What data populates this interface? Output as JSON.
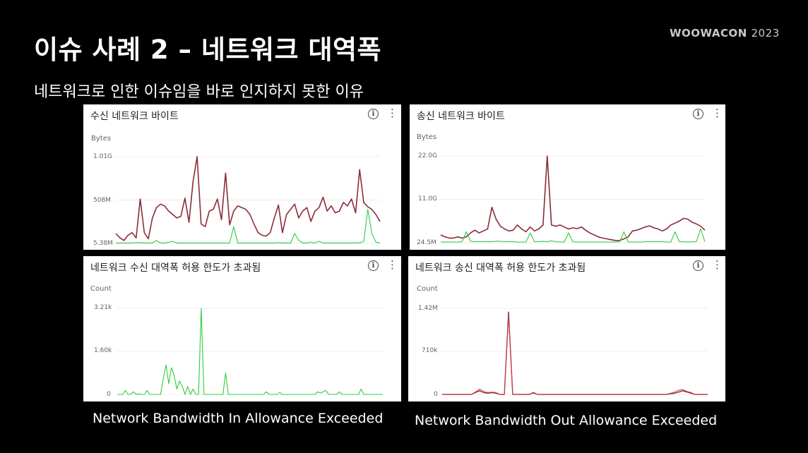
{
  "slide": {
    "title": "이슈 사례 2 – 네트워크 대역폭",
    "brand": "WOOWACON",
    "brand_year": "2023",
    "subtitle": "네트워크로 인한 이슈임을 바로 인지하지 못한 이유"
  },
  "captions": {
    "in": "Network Bandwidth In Allowance Exceeded",
    "out": "Network Bandwidth Out Allowance Exceeded"
  },
  "colors": {
    "series_dark": "#8b2c3a",
    "series_green": "#2ecc40",
    "series_red": "#d04040"
  },
  "panels": [
    {
      "id": "recv",
      "title": "수신 네트워크 바이트",
      "ylabel": "Bytes",
      "ticks": [
        "1.01G",
        "508M",
        "5.38M"
      ]
    },
    {
      "id": "send",
      "title": "송신 네트워크 바이트",
      "ylabel": "Bytes",
      "ticks": [
        "22.0G",
        "11.0G",
        "24.5M"
      ]
    },
    {
      "id": "inexc",
      "title": "네트워크 수신 대역폭 허용 한도가 초과됨",
      "ylabel": "Count",
      "ticks": [
        "3.21k",
        "1.60k",
        "0"
      ]
    },
    {
      "id": "outexc",
      "title": "네트워크 송신 대역폭 허용 한도가 초과됨",
      "ylabel": "Count",
      "ticks": [
        "1.42M",
        "710k",
        "0"
      ]
    }
  ],
  "chart_data": [
    {
      "type": "line",
      "title": "수신 네트워크 바이트",
      "ylabel": "Bytes",
      "ylim": [
        5.38,
        1010
      ],
      "unit": "M",
      "yticks": [
        "1.01G",
        "508M",
        "5.38M"
      ],
      "series": [
        {
          "values": [
            120,
            70,
            40,
            100,
            130,
            70,
            520,
            130,
            60,
            300,
            420,
            460,
            440,
            380,
            340,
            300,
            320,
            530,
            250,
            720,
            1010,
            230,
            200,
            380,
            400,
            520,
            280,
            820,
            220,
            380,
            440,
            420,
            400,
            340,
            230,
            130,
            100,
            90,
            130,
            300,
            450,
            130,
            340,
            400,
            460,
            300,
            380,
            420,
            260,
            380,
            420,
            540,
            380,
            440,
            360,
            380,
            480,
            440,
            520,
            360,
            860,
            480,
            430,
            400,
            340,
            260
          ]
        },
        {
          "values": [
            10,
            10,
            10,
            10,
            10,
            15,
            15,
            10,
            10,
            10,
            40,
            10,
            10,
            20,
            30,
            10,
            10,
            10,
            10,
            10,
            10,
            10,
            10,
            10,
            10,
            10,
            10,
            10,
            10,
            200,
            10,
            10,
            10,
            10,
            10,
            10,
            10,
            10,
            10,
            10,
            15,
            10,
            10,
            10,
            120,
            40,
            10,
            10,
            20,
            10,
            30,
            10,
            10,
            10,
            10,
            10,
            10,
            10,
            10,
            15,
            10,
            30,
            400,
            120,
            20,
            10
          ]
        }
      ]
    },
    {
      "type": "line",
      "title": "송신 네트워크 바이트",
      "ylabel": "Bytes",
      "ylim": [
        0.0245,
        22.0
      ],
      "unit": "G",
      "yticks": [
        "22.0G",
        "11.0G",
        "24.5M"
      ],
      "series": [
        {
          "values": [
            2.0,
            1.5,
            1.2,
            1.2,
            1.5,
            1.2,
            1.5,
            2.5,
            3.2,
            2.5,
            3.0,
            3.5,
            9.0,
            6.0,
            4.2,
            3.5,
            3.0,
            3.2,
            4.5,
            3.5,
            2.8,
            4.0,
            3.0,
            3.5,
            4.5,
            22.0,
            4.5,
            4.2,
            4.5,
            4.0,
            3.5,
            3.8,
            3.6,
            4.0,
            3.2,
            2.5,
            2.0,
            1.5,
            1.2,
            1.0,
            0.8,
            0.6,
            0.6,
            1.0,
            1.5,
            3.0,
            3.2,
            3.6,
            4.0,
            4.3,
            3.8,
            3.5,
            3.0,
            3.5,
            4.5,
            5.0,
            5.5,
            6.2,
            6.0,
            5.2,
            4.8,
            4.2,
            3.2
          ]
        },
        {
          "values": [
            0.2,
            0.2,
            0.2,
            0.2,
            0.2,
            0.3,
            2.8,
            0.4,
            0.3,
            0.3,
            0.3,
            0.3,
            0.3,
            0.4,
            0.4,
            0.3,
            0.3,
            0.3,
            0.2,
            0.2,
            0.2,
            2.5,
            0.3,
            0.3,
            0.4,
            0.3,
            0.5,
            0.3,
            0.2,
            0.2,
            2.5,
            0.3,
            0.2,
            0.2,
            0.2,
            0.2,
            0.2,
            0.2,
            0.2,
            0.2,
            0.2,
            0.2,
            0.3,
            2.8,
            0.2,
            0.2,
            0.2,
            0.2,
            0.3,
            0.3,
            0.3,
            0.3,
            0.3,
            0.2,
            0.2,
            2.8,
            0.3,
            0.3,
            0.2,
            0.3,
            0.3,
            3.5,
            0.3
          ]
        }
      ]
    },
    {
      "type": "line",
      "title": "네트워크 수신 대역폭 허용 한도가 초과됨",
      "ylabel": "Count",
      "ylim": [
        0,
        3210
      ],
      "unit": "",
      "yticks": [
        "3.21k",
        "1.60k",
        "0"
      ],
      "series": [
        {
          "values": [
            0,
            0,
            0,
            150,
            0,
            0,
            100,
            0,
            30,
            0,
            0,
            150,
            0,
            0,
            0,
            0,
            0,
            600,
            1100,
            400,
            1000,
            700,
            200,
            500,
            300,
            0,
            300,
            0,
            200,
            0,
            0,
            3210,
            0,
            0,
            0,
            0,
            0,
            0,
            0,
            0,
            800,
            0,
            0,
            0,
            0,
            0,
            0,
            0,
            0,
            0,
            0,
            0,
            0,
            0,
            0,
            100,
            0,
            0,
            0,
            0,
            80,
            0,
            0,
            0,
            0,
            0,
            0,
            0,
            0,
            0,
            0,
            0,
            0,
            0,
            100,
            50,
            100,
            150,
            0,
            0,
            0,
            0,
            100,
            0,
            0,
            0,
            0,
            0,
            0,
            0,
            200,
            0,
            0,
            0,
            0,
            0,
            0,
            0,
            0
          ]
        }
      ]
    },
    {
      "type": "line",
      "title": "네트워크 송신 대역폭 허용 한도가 초과됨",
      "ylabel": "Count",
      "ylim": [
        0,
        1420000
      ],
      "unit": "",
      "yticks": [
        "1.42M",
        "710k",
        "0"
      ],
      "series": [
        {
          "values": [
            0,
            0,
            0,
            0,
            0,
            0,
            0,
            0,
            30000,
            60000,
            30000,
            20000,
            30000,
            20000,
            0,
            0,
            1360000,
            0,
            0,
            0,
            0,
            0,
            30000,
            0,
            0,
            0,
            0,
            0,
            0,
            0,
            0,
            0,
            0,
            0,
            0,
            0,
            0,
            0,
            0,
            0,
            0,
            0,
            0,
            0,
            0,
            0,
            0,
            0,
            0,
            0,
            0,
            0,
            0,
            0,
            0,
            10000,
            20000,
            40000,
            60000,
            40000,
            20000,
            0,
            0,
            0,
            0
          ]
        },
        {
          "values": [
            0,
            0,
            0,
            0,
            0,
            0,
            0,
            0,
            40000,
            90000,
            50000,
            30000,
            40000,
            30000,
            0,
            0,
            1300000,
            0,
            0,
            0,
            0,
            0,
            20000,
            0,
            0,
            0,
            0,
            0,
            0,
            0,
            0,
            0,
            0,
            0,
            0,
            0,
            0,
            0,
            0,
            0,
            0,
            0,
            0,
            0,
            0,
            0,
            0,
            0,
            0,
            0,
            0,
            0,
            0,
            0,
            0,
            20000,
            40000,
            70000,
            80000,
            50000,
            30000,
            0,
            0,
            0,
            0
          ]
        }
      ]
    }
  ]
}
